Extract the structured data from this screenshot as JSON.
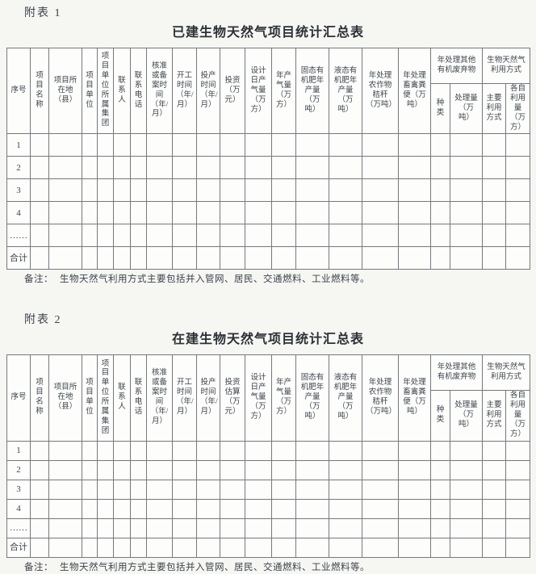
{
  "colors": {
    "paper": "#f6f6f3",
    "cell_background": "#fdfdfc",
    "ink": "#3d434b",
    "border_line": "#75797d"
  },
  "document": {
    "tables": [
      {
        "label": "附表 1",
        "title": "已建生物天然气项目统计汇总表",
        "columns": [
          {
            "label": "序号"
          },
          {
            "label": "项目名称"
          },
          {
            "label": "项目所在地（县）"
          },
          {
            "label": "项目单位"
          },
          {
            "label": "项目单位所属集团"
          },
          {
            "label": "联系人"
          },
          {
            "label": "联系电话"
          },
          {
            "label": "核准或备案时间（年/月）"
          },
          {
            "label": "开工时间（年/月）"
          },
          {
            "label": "投产时间（年/月）"
          },
          {
            "label": "投资（万元）"
          },
          {
            "label": "设计日产气量（万方）"
          },
          {
            "label": "年产气量（万方）"
          },
          {
            "label": "固态有机肥年产量（万吨）"
          },
          {
            "label": "液态有机肥年产量（万吨）"
          },
          {
            "label": "年处理农作物秸秆（万吨）"
          },
          {
            "label": "年处理畜禽粪便（万吨）"
          },
          {
            "label": "年处理其他有机废弃物",
            "children": [
              {
                "label": "种类"
              },
              {
                "label": "处理量（万吨）"
              }
            ]
          },
          {
            "label": "生物天然气利用方式",
            "children": [
              {
                "label": "主要利用方式"
              },
              {
                "label": "各自利用量（万方）"
              }
            ]
          }
        ],
        "row_labels": [
          "1",
          "2",
          "3",
          "4",
          "……",
          "合计"
        ],
        "note_label": "备注：",
        "note_text": "生物天然气利用方式主要包括并入管网、居民、交通燃料、工业燃料等。"
      },
      {
        "label": "附表 2",
        "title": "在建生物天然气项目统计汇总表",
        "columns": [
          {
            "label": "序号"
          },
          {
            "label": "项目名称"
          },
          {
            "label": "项目所在地（县）"
          },
          {
            "label": "项目单位"
          },
          {
            "label": "项目单位所属集团"
          },
          {
            "label": "联系人"
          },
          {
            "label": "联系电话"
          },
          {
            "label": "核准或备案时间（年/月）"
          },
          {
            "label": "开工时间（年/月）"
          },
          {
            "label": "投产时间（年/月）"
          },
          {
            "label": "投资估算（万元）"
          },
          {
            "label": "设计日产气量（万方）"
          },
          {
            "label": "年产气量（万方）"
          },
          {
            "label": "固态有机肥年产量（万吨）"
          },
          {
            "label": "液态有机肥年产量（万吨）"
          },
          {
            "label": "年处理农作物秸秆（万吨）"
          },
          {
            "label": "年处理畜禽粪便（万吨）"
          },
          {
            "label": "年处理其他有机废弃物",
            "children": [
              {
                "label": "种类"
              },
              {
                "label": "处理量（万吨）"
              }
            ]
          },
          {
            "label": "生物天然气利用方式",
            "children": [
              {
                "label": "主要利用方式"
              },
              {
                "label": "各自利用量（万方）"
              }
            ]
          }
        ],
        "row_labels": [
          "1",
          "2",
          "3",
          "4",
          "……",
          "合计"
        ],
        "note_label": "备注：",
        "note_text": "生物天然气利用方式主要包括并入管网、居民、交通燃料、工业燃料等。"
      }
    ]
  }
}
